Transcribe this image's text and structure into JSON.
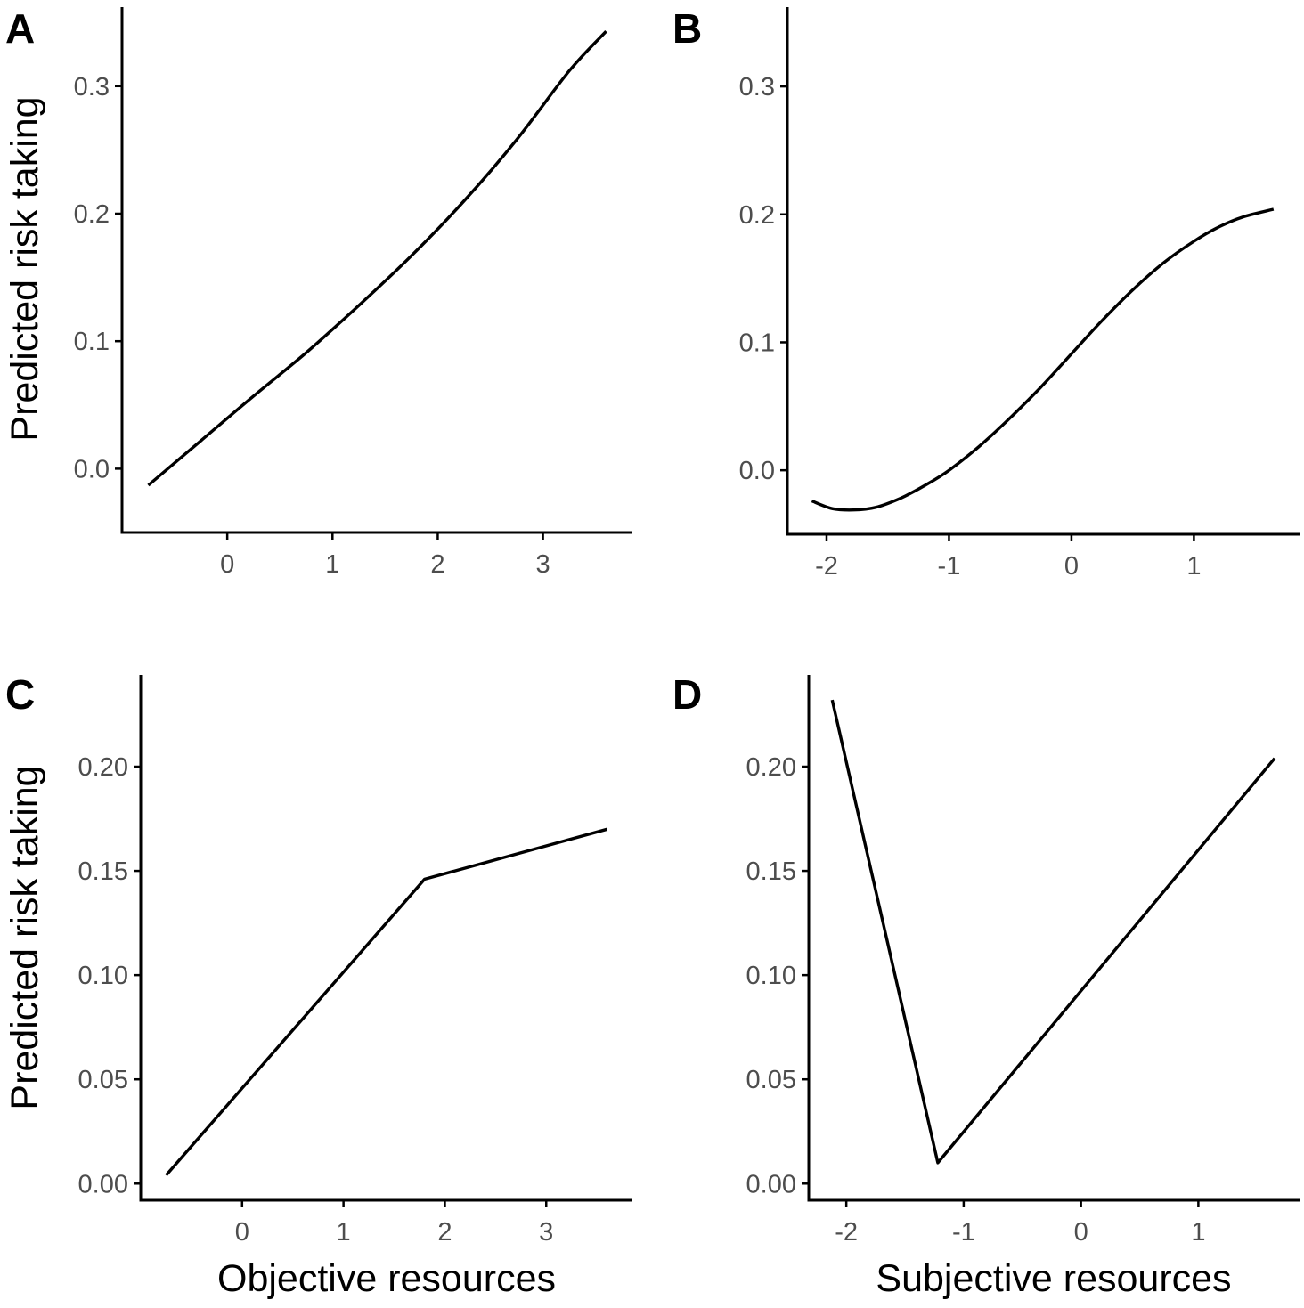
{
  "figure": {
    "y_axis_title": "Predicted risk taking",
    "x_axis_title_left": "Objective resources",
    "x_axis_title_right": "Subjective resources"
  },
  "chart_data": [
    {
      "id": "A",
      "panel_label": "A",
      "type": "line",
      "xlabel": "",
      "ylabel": "Predicted risk taking",
      "xlim": [
        -1.0,
        3.85
      ],
      "ylim": [
        -0.05,
        0.362
      ],
      "x_ticks": [
        0,
        1,
        2,
        3
      ],
      "x_tick_labels": [
        "0",
        "1",
        "2",
        "3"
      ],
      "y_ticks": [
        0.0,
        0.1,
        0.2,
        0.3
      ],
      "y_tick_labels": [
        "0.0",
        "0.1",
        "0.2",
        "0.3"
      ],
      "grid": false,
      "series": [
        {
          "x": [
            -0.75,
            -0.25,
            0.25,
            0.75,
            1.25,
            1.75,
            2.25,
            2.75,
            3.25,
            3.6
          ],
          "y": [
            -0.013,
            0.022,
            0.057,
            0.091,
            0.128,
            0.167,
            0.21,
            0.258,
            0.312,
            0.343
          ]
        }
      ]
    },
    {
      "id": "B",
      "panel_label": "B",
      "type": "line",
      "xlabel": "",
      "ylabel": "",
      "xlim": [
        -2.32,
        1.87
      ],
      "ylim": [
        -0.05,
        0.362
      ],
      "x_ticks": [
        -2,
        -1,
        0,
        1
      ],
      "x_tick_labels": [
        "-2",
        "-1",
        "0",
        "1"
      ],
      "y_ticks": [
        0.0,
        0.1,
        0.2,
        0.3
      ],
      "y_tick_labels": [
        "0.0",
        "0.1",
        "0.2",
        "0.3"
      ],
      "grid": false,
      "series": [
        {
          "x": [
            -2.12,
            -1.95,
            -1.78,
            -1.6,
            -1.4,
            -1.2,
            -1.0,
            -0.75,
            -0.5,
            -0.25,
            0.0,
            0.25,
            0.5,
            0.75,
            1.0,
            1.2,
            1.4,
            1.65
          ],
          "y": [
            -0.024,
            -0.03,
            -0.031,
            -0.029,
            -0.022,
            -0.012,
            0.0,
            0.019,
            0.041,
            0.065,
            0.091,
            0.117,
            0.141,
            0.162,
            0.179,
            0.19,
            0.198,
            0.204
          ]
        }
      ]
    },
    {
      "id": "C",
      "panel_label": "C",
      "type": "line",
      "xlabel": "Objective resources",
      "ylabel": "Predicted risk taking",
      "xlim": [
        -1.0,
        3.85
      ],
      "ylim": [
        -0.008,
        0.244
      ],
      "x_ticks": [
        0,
        1,
        2,
        3
      ],
      "x_tick_labels": [
        "0",
        "1",
        "2",
        "3"
      ],
      "y_ticks": [
        0.0,
        0.05,
        0.1,
        0.15,
        0.2
      ],
      "y_tick_labels": [
        "0.00",
        "0.05",
        "0.10",
        "0.15",
        "0.20"
      ],
      "grid": false,
      "series": [
        {
          "x": [
            -0.75,
            1.8,
            3.6
          ],
          "y": [
            0.004,
            0.146,
            0.17
          ]
        }
      ]
    },
    {
      "id": "D",
      "panel_label": "D",
      "type": "line",
      "xlabel": "Subjective resources",
      "ylabel": "",
      "xlim": [
        -2.32,
        1.87
      ],
      "ylim": [
        -0.008,
        0.244
      ],
      "x_ticks": [
        -2,
        -1,
        0,
        1
      ],
      "x_tick_labels": [
        "-2",
        "-1",
        "0",
        "1"
      ],
      "y_ticks": [
        0.0,
        0.05,
        0.1,
        0.15,
        0.2
      ],
      "y_tick_labels": [
        "0.00",
        "0.05",
        "0.10",
        "0.15",
        "0.20"
      ],
      "grid": false,
      "series": [
        {
          "x": [
            -2.12,
            -1.22,
            1.65
          ],
          "y": [
            0.232,
            0.01,
            0.204
          ]
        }
      ]
    }
  ]
}
